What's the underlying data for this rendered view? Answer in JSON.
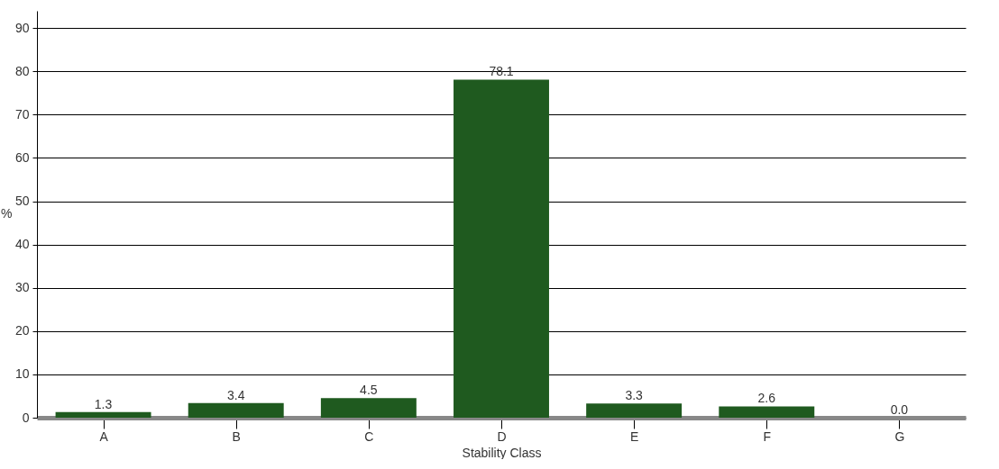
{
  "chart_data": {
    "type": "bar",
    "xlabel": "Stability Class",
    "ylabel": "%",
    "categories": [
      "A",
      "B",
      "C",
      "D",
      "E",
      "F",
      "G"
    ],
    "values": [
      1.3,
      3.4,
      4.5,
      78.1,
      3.3,
      2.6,
      0.0
    ],
    "value_labels": [
      "1.3",
      "3.4",
      "4.5",
      "78.1",
      "3.3",
      "2.6",
      "0.0"
    ],
    "color": "#1f5a1f",
    "ylim": [
      0,
      94
    ],
    "yticks": [
      0,
      10,
      20,
      30,
      40,
      50,
      60,
      70,
      80,
      90
    ],
    "grid": "y"
  }
}
